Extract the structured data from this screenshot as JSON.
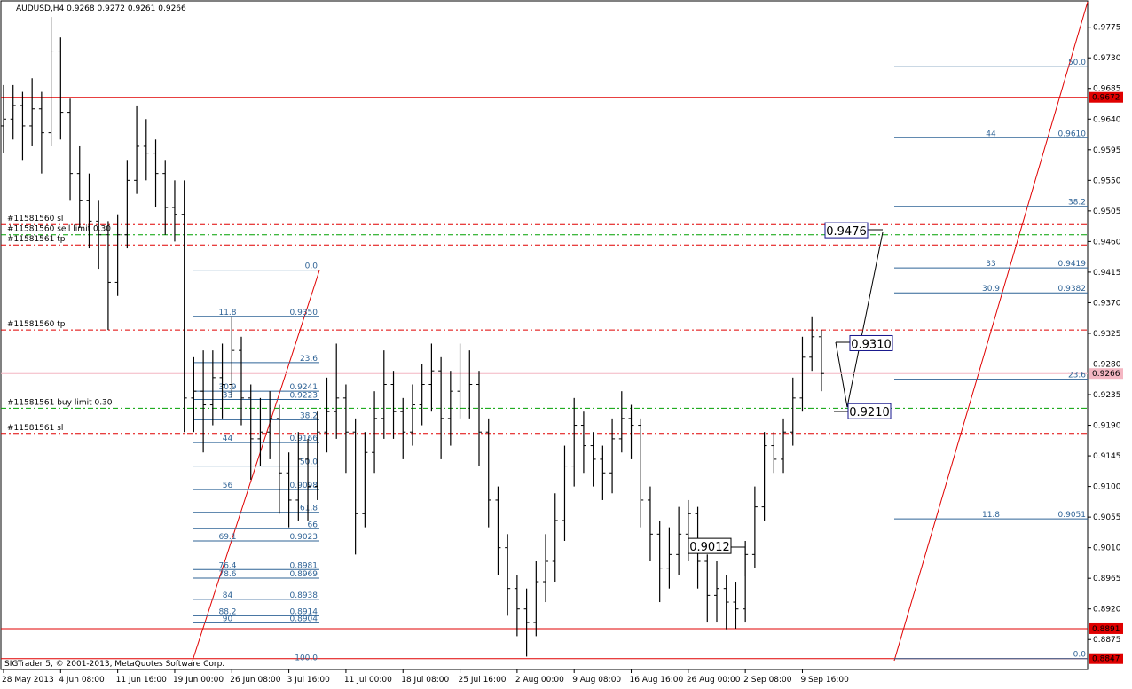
{
  "chart_data": {
    "type": "ohlc",
    "title": "AUDUSD,H4",
    "header_ohlc": [
      0.9268,
      0.9272,
      0.9261,
      0.9266
    ],
    "footer": "SIGTrader 5, © 2001-2013, MetaQuotes Software Corp.",
    "ylim": [
      0.8831,
      0.9815
    ],
    "yticks": [
      0.9775,
      {
        "value": 0.973,
        "label": "0.9730"
      },
      0.9685,
      {
        "value": 0.964,
        "label": "0.9640"
      },
      0.9595,
      {
        "value": 0.955,
        "label": "0.9550"
      },
      0.9505,
      {
        "value": 0.946,
        "label": "0.9460"
      },
      0.9415,
      {
        "value": 0.937,
        "label": "0.9370"
      },
      0.9325,
      {
        "value": 0.928,
        "label": "0.9280"
      },
      0.9235,
      {
        "value": 0.919,
        "label": "0.9190"
      },
      0.9145,
      {
        "value": 0.91,
        "label": "0.9100"
      },
      0.9055,
      {
        "value": 0.901,
        "label": "0.9010"
      },
      0.8965,
      {
        "value": 0.892,
        "label": "0.8920"
      },
      0.8875
    ],
    "categories": [
      "28 May 2013",
      null,
      null,
      null,
      null,
      null,
      "4 Jun 08:00",
      null,
      null,
      null,
      null,
      null,
      "11 Jun 16:00",
      null,
      null,
      null,
      null,
      null,
      "19 Jun 00:00",
      null,
      null,
      null,
      null,
      null,
      "26 Jun 08:00",
      null,
      null,
      null,
      null,
      null,
      "3 Jul 16:00",
      null,
      null,
      null,
      null,
      null,
      "11 Jul 00:00",
      null,
      null,
      null,
      null,
      null,
      "18 Jul 08:00",
      null,
      null,
      null,
      null,
      null,
      "25 Jul 16:00",
      null,
      null,
      null,
      null,
      null,
      "2 Aug 00:00",
      null,
      null,
      null,
      null,
      null,
      "9 Aug 08:00",
      null,
      null,
      null,
      null,
      null,
      "16 Aug 16:00",
      null,
      null,
      null,
      null,
      null,
      "26 Aug 00:00",
      null,
      null,
      null,
      null,
      null,
      "2 Sep 08:00",
      null,
      null,
      null,
      null,
      null,
      "9 Sep 16:00",
      null,
      null
    ],
    "color": "#000000",
    "open": [
      0.963,
      0.964,
      0.966,
      0.963,
      0.9655,
      0.962,
      0.974,
      0.965,
      0.956,
      0.952,
      0.949,
      0.947,
      0.94,
      0.947,
      0.955,
      0.96,
      0.959,
      0.956,
      0.951,
      0.95,
      0.923,
      0.924,
      0.922,
      0.926,
      0.925,
      0.93,
      0.923,
      0.917,
      0.918,
      0.92,
      0.912,
      0.908,
      0.914,
      0.91,
      0.918,
      0.921,
      0.923,
      0.918,
      0.906,
      0.915,
      0.92,
      0.925,
      0.921,
      0.918,
      0.922,
      0.925,
      0.927,
      0.92,
      0.924,
      0.928,
      0.925,
      0.918,
      0.908,
      0.901,
      0.895,
      0.892,
      0.89,
      0.896,
      0.899,
      0.905,
      0.913,
      0.919,
      0.916,
      0.914,
      0.912,
      0.917,
      0.92,
      0.919,
      0.908,
      0.903,
      0.898,
      0.9,
      0.903,
      0.906,
      0.899,
      0.894,
      0.895,
      0.893,
      0.892,
      0.9,
      0.907,
      0.916,
      0.914,
      0.918,
      0.923,
      0.929,
      0.932
    ],
    "high": [
      0.969,
      0.969,
      0.968,
      0.97,
      0.968,
      0.979,
      0.976,
      0.967,
      0.96,
      0.956,
      0.952,
      0.949,
      0.95,
      0.958,
      0.966,
      0.964,
      0.961,
      0.958,
      0.955,
      0.955,
      0.929,
      0.93,
      0.93,
      0.931,
      0.935,
      0.932,
      0.925,
      0.923,
      0.924,
      0.922,
      0.915,
      0.918,
      0.917,
      0.921,
      0.926,
      0.931,
      0.925,
      0.92,
      0.918,
      0.924,
      0.93,
      0.927,
      0.923,
      0.925,
      0.928,
      0.931,
      0.929,
      0.927,
      0.931,
      0.93,
      0.927,
      0.92,
      0.91,
      0.903,
      0.897,
      0.895,
      0.899,
      0.903,
      0.909,
      0.916,
      0.923,
      0.921,
      0.918,
      0.916,
      0.92,
      0.924,
      0.922,
      0.92,
      0.91,
      0.905,
      0.904,
      0.907,
      0.908,
      0.907,
      0.9,
      0.899,
      0.897,
      0.896,
      0.902,
      0.91,
      0.918,
      0.918,
      0.92,
      0.926,
      0.932,
      0.935,
      0.933
    ],
    "low": [
      0.959,
      0.961,
      0.958,
      0.96,
      0.956,
      0.96,
      0.961,
      0.952,
      0.948,
      0.945,
      0.942,
      0.933,
      0.938,
      0.945,
      0.953,
      0.955,
      0.951,
      0.947,
      0.946,
      0.918,
      0.918,
      0.915,
      0.919,
      0.92,
      0.923,
      0.919,
      0.911,
      0.913,
      0.914,
      0.906,
      0.904,
      0.905,
      0.905,
      0.908,
      0.915,
      0.917,
      0.912,
      0.9,
      0.904,
      0.912,
      0.917,
      0.917,
      0.914,
      0.916,
      0.919,
      0.921,
      0.914,
      0.916,
      0.92,
      0.92,
      0.913,
      0.904,
      0.897,
      0.891,
      0.888,
      0.885,
      0.888,
      0.893,
      0.896,
      0.902,
      0.91,
      0.912,
      0.91,
      0.908,
      0.909,
      0.915,
      0.914,
      0.904,
      0.899,
      0.893,
      0.895,
      0.897,
      0.899,
      0.895,
      0.89,
      0.89,
      0.889,
      0.8891,
      0.89,
      0.898,
      0.905,
      0.912,
      0.912,
      0.916,
      0.921,
      0.927,
      0.924
    ],
    "close": [
      0.964,
      0.966,
      0.963,
      0.9655,
      0.962,
      0.974,
      0.965,
      0.956,
      0.952,
      0.949,
      0.947,
      0.94,
      0.947,
      0.955,
      0.96,
      0.959,
      0.956,
      0.951,
      0.95,
      0.923,
      0.924,
      0.922,
      0.926,
      0.925,
      0.93,
      0.923,
      0.917,
      0.918,
      0.92,
      0.912,
      0.908,
      0.914,
      0.91,
      0.918,
      0.921,
      0.923,
      0.918,
      0.906,
      0.915,
      0.92,
      0.925,
      0.921,
      0.918,
      0.922,
      0.925,
      0.927,
      0.92,
      0.924,
      0.928,
      0.925,
      0.918,
      0.908,
      0.901,
      0.895,
      0.892,
      0.89,
      0.896,
      0.899,
      0.905,
      0.913,
      0.919,
      0.916,
      0.914,
      0.912,
      0.917,
      0.92,
      0.919,
      0.908,
      0.903,
      0.898,
      0.9,
      0.903,
      0.906,
      0.899,
      0.894,
      0.895,
      0.893,
      0.892,
      0.9,
      0.907,
      0.916,
      0.914,
      0.918,
      0.923,
      0.929,
      0.932,
      0.9266
    ],
    "price_markers": [
      {
        "value": 0.9672,
        "color": "#e00000"
      },
      {
        "value": 0.8891,
        "color": "#e00000"
      },
      {
        "value": 0.8847,
        "color": "#e00000"
      },
      {
        "value": 0.9266,
        "color": "#f4b6c2"
      }
    ],
    "levels": [
      {
        "label": "#11581560 sl",
        "value": 0.9485,
        "color": "#e00000"
      },
      {
        "label": "#11581560 sell limit 0.30",
        "value": 0.947,
        "color": "#00a000"
      },
      {
        "label": "#11581561 tp",
        "value": 0.9455,
        "color": "#e00000"
      },
      {
        "label": "#11581560 tp",
        "value": 0.933,
        "color": "#e00000"
      },
      {
        "label": "#11581561 buy limit 0.30",
        "value": 0.9215,
        "color": "#00a000"
      },
      {
        "label": "#11581561 sl",
        "value": 0.9178,
        "color": "#e00000"
      }
    ],
    "fibo": [
      {
        "from": 0.9418,
        "to": 0.8842,
        "color": "#2f6396",
        "levels": [
          {
            "level": {
              "value": 0,
              "label": "0.0"
            }
          },
          {
            "level": 11.8,
            "price": {
              "value": 0.935,
              "label": "0.9350"
            }
          },
          {
            "level": 23.6
          },
          {
            "level": 30.9,
            "price": 0.9241
          },
          {
            "level": 33,
            "price": 0.9223
          },
          {
            "level": 38.2
          },
          {
            "level": 44,
            "price": 0.9166
          },
          {
            "level": {
              "value": 50,
              "label": "50.0"
            }
          },
          {
            "level": 56,
            "price": 0.9098
          },
          {
            "level": 61.8
          },
          {
            "level": 66
          },
          {
            "level": 69.1,
            "price": 0.9023
          },
          {
            "level": 76.4,
            "price": 0.8981
          },
          {
            "level": 78.6,
            "price": 0.8969
          },
          {
            "level": 84,
            "price": 0.8938
          },
          {
            "level": 88.2,
            "price": 0.8914
          },
          {
            "level": 90,
            "price": 0.8904
          },
          {
            "level": {
              "value": 100,
              "label": "100.0"
            }
          }
        ]
      },
      {
        "from": 0.8847,
        "to": 1.0587,
        "color": "#2f6396",
        "levels": [
          {
            "level": {
              "value": 0,
              "label": "0.0"
            }
          },
          {
            "level": 11.8,
            "price": 0.9051
          },
          {
            "level": 23.6
          },
          {
            "level": 30.9,
            "price": 0.9382
          },
          {
            "level": 33,
            "price": 0.9419
          },
          {
            "level": 38.2
          },
          {
            "level": 44,
            "price": {
              "value": 0.961,
              "label": "0.9610"
            }
          },
          {
            "level": {
              "value": 50,
              "label": "50.0"
            }
          }
        ]
      }
    ],
    "annotations": [
      {
        "value": 0.9476,
        "color": "#14148c"
      },
      {
        "value": {
          "value": 0.931,
          "label": "0.9310"
        },
        "color": "#14148c"
      },
      {
        "value": {
          "value": 0.921,
          "label": "0.9210"
        },
        "color": "#14148c"
      },
      {
        "value": 0.9012,
        "color": "#000000"
      }
    ]
  }
}
